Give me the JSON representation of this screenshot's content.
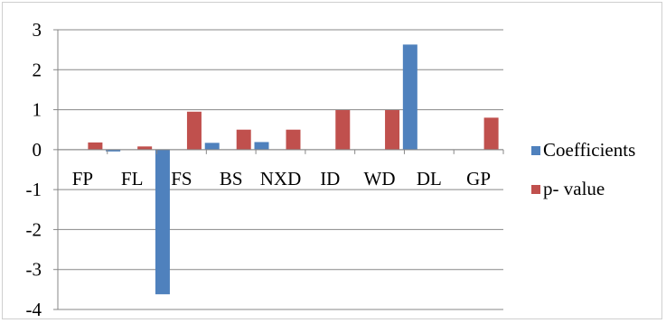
{
  "chart_data": {
    "type": "bar",
    "categories": [
      "FP",
      "FL",
      "FS",
      "BS",
      "NXD",
      "ID",
      "WD",
      "DL",
      "GP"
    ],
    "series": [
      {
        "name": "Coefficients",
        "color": "#4f81bd",
        "values": [
          0.0,
          -0.04,
          -3.62,
          0.17,
          0.19,
          0.0,
          0.0,
          2.63,
          0.0
        ]
      },
      {
        "name": "p- value",
        "color": "#c0504d",
        "values": [
          0.18,
          0.08,
          0.95,
          0.5,
          0.5,
          0.99,
          0.99,
          0.0,
          0.8
        ]
      }
    ],
    "ylim": [
      -4,
      3
    ],
    "yticks": [
      "3",
      "2",
      "1",
      "0",
      "-1",
      "-2",
      "-3",
      "-4"
    ],
    "grid": true,
    "legend_position": "right",
    "title": "",
    "xlabel": "",
    "ylabel": ""
  }
}
